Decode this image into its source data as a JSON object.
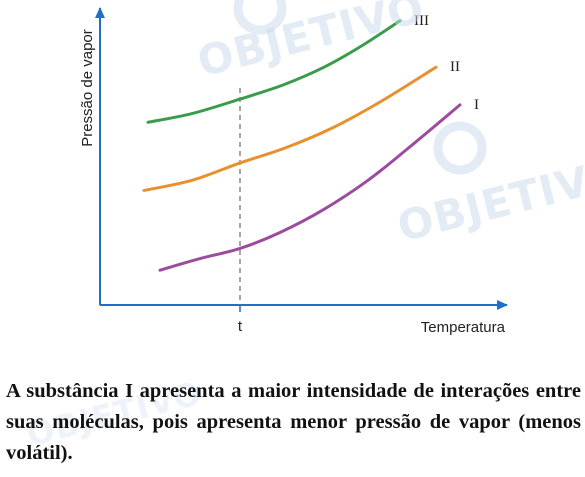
{
  "chart_data": {
    "type": "line",
    "title": "",
    "xlabel": "Temperatura",
    "ylabel": "Pressão de vapor",
    "xlim": [
      0,
      10
    ],
    "ylim": [
      0,
      10
    ],
    "x_ticks": [
      {
        "x": 3.5,
        "label": "t"
      }
    ],
    "reference_line": {
      "x": 3.5,
      "style": "dashed"
    },
    "grid": false,
    "series": [
      {
        "name": "III",
        "color": "#3a9b4a",
        "points": [
          [
            1.2,
            6.3
          ],
          [
            2.3,
            6.6
          ],
          [
            3.5,
            7.1
          ],
          [
            4.6,
            7.6
          ],
          [
            5.6,
            8.2
          ],
          [
            6.5,
            8.9
          ],
          [
            7.5,
            9.8
          ]
        ]
      },
      {
        "name": "II",
        "color": "#e8902e",
        "points": [
          [
            1.1,
            3.95
          ],
          [
            2.3,
            4.3
          ],
          [
            3.5,
            4.9
          ],
          [
            4.6,
            5.4
          ],
          [
            5.8,
            6.1
          ],
          [
            7.0,
            7.0
          ],
          [
            8.4,
            8.2
          ]
        ]
      },
      {
        "name": "I",
        "color": "#9b4c9e",
        "points": [
          [
            1.5,
            1.2
          ],
          [
            2.5,
            1.6
          ],
          [
            3.5,
            1.95
          ],
          [
            4.5,
            2.5
          ],
          [
            5.6,
            3.3
          ],
          [
            6.7,
            4.3
          ],
          [
            7.7,
            5.4
          ],
          [
            9.0,
            6.9
          ]
        ]
      }
    ]
  },
  "caption": {
    "text": "A substância I apresenta a maior intensidade de interações entre suas moléculas, pois apresenta menor pressão de vapor (menos volátil)."
  },
  "watermark": {
    "text": "OBJETIVO"
  }
}
